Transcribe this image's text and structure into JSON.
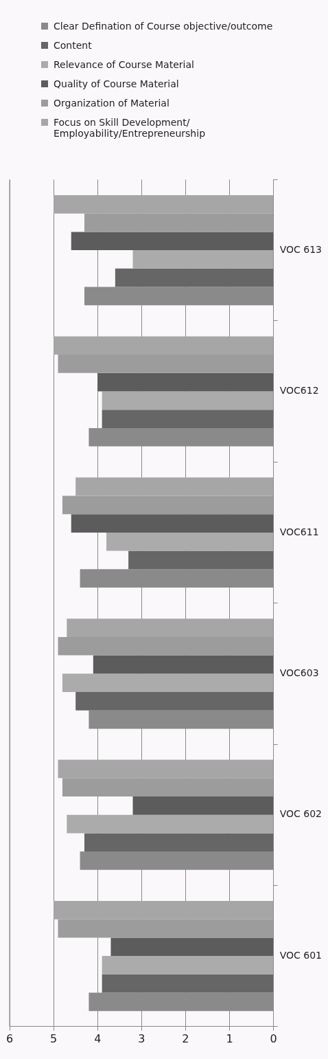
{
  "chart_data": {
    "type": "bar",
    "orientation": "horizontal",
    "categories": [
      "VOC 613",
      "VOC612",
      "VOC611",
      "VOC603",
      "VOC 602",
      "VOC 601"
    ],
    "series": [
      {
        "name": "Clear Defination of Course objective/outcome",
        "color": "#8a8a8a",
        "values": [
          4.3,
          4.2,
          4.4,
          4.2,
          4.4,
          4.2
        ]
      },
      {
        "name": "Content",
        "color": "#666666",
        "values": [
          3.6,
          3.9,
          3.3,
          4.5,
          4.3,
          3.9
        ]
      },
      {
        "name": "Relevance of Course Material",
        "color": "#ababab",
        "values": [
          3.2,
          3.9,
          3.8,
          4.8,
          4.7,
          3.9
        ]
      },
      {
        "name": "Quality of Course Material",
        "color": "#5c5c5c",
        "values": [
          4.6,
          4.0,
          4.6,
          4.1,
          3.2,
          3.7
        ]
      },
      {
        "name": "Organization of Material",
        "color": "#9c9c9c",
        "values": [
          4.3,
          4.9,
          4.8,
          4.9,
          4.8,
          4.9
        ]
      },
      {
        "name": "Focus on Skill Development/ Employability/Entrepreneurship",
        "color": "#a6a6a6",
        "values": [
          5.0,
          5.0,
          4.5,
          4.7,
          4.9,
          5.0
        ]
      }
    ],
    "xlim": [
      6,
      0
    ],
    "xticks": [
      6,
      5,
      4,
      3,
      2,
      1,
      0
    ],
    "grid": "x",
    "legend": "top"
  }
}
